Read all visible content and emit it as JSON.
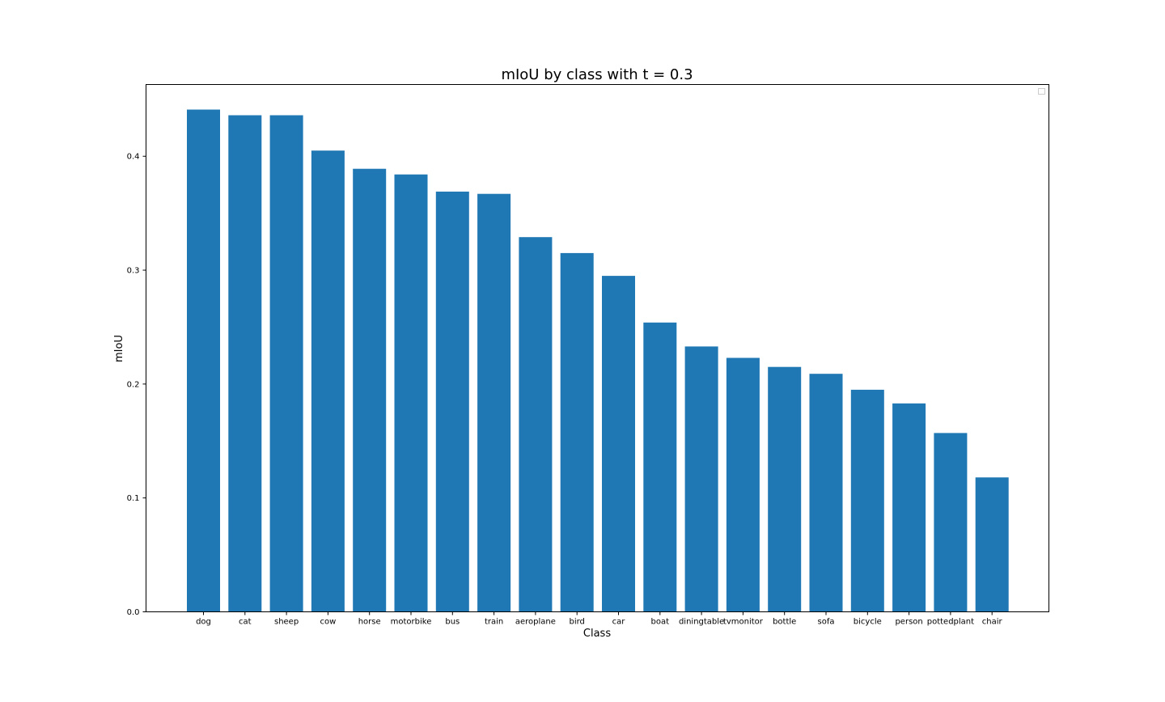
{
  "chart_data": {
    "type": "bar",
    "title": "mIoU by class with t = 0.3",
    "xlabel": "Class",
    "ylabel": "mIoU",
    "categories": [
      "dog",
      "cat",
      "sheep",
      "cow",
      "horse",
      "motorbike",
      "bus",
      "train",
      "aeroplane",
      "bird",
      "car",
      "boat",
      "diningtable",
      "tvmonitor",
      "bottle",
      "sofa",
      "bicycle",
      "person",
      "pottedplant",
      "chair"
    ],
    "values": [
      0.441,
      0.436,
      0.436,
      0.405,
      0.389,
      0.384,
      0.369,
      0.367,
      0.329,
      0.315,
      0.295,
      0.254,
      0.233,
      0.223,
      0.215,
      0.209,
      0.195,
      0.183,
      0.157,
      0.118
    ],
    "yticks": [
      0.0,
      0.1,
      0.2,
      0.3,
      0.4
    ],
    "ytick_labels": [
      "0.0",
      "0.1",
      "0.2",
      "0.3",
      "0.4"
    ],
    "ylim": [
      0,
      0.463
    ],
    "bar_color": "#1f77b4",
    "grid": false,
    "legend": {
      "placement": "top-right",
      "entries": []
    }
  }
}
